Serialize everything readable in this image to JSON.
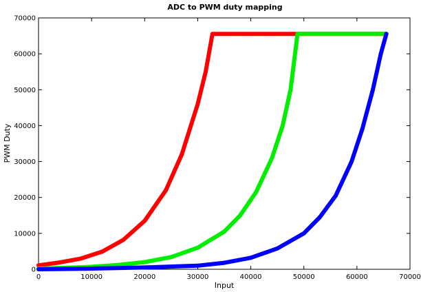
{
  "chart_data": {
    "type": "line",
    "title": "ADC to PWM duty mapping",
    "xlabel": "Input",
    "ylabel": "PWM Duty",
    "xlim": [
      0,
      70000
    ],
    "ylim": [
      0,
      70000
    ],
    "x_ticks": [
      "0",
      "10000",
      "20000",
      "30000",
      "40000",
      "50000",
      "60000",
      "70000"
    ],
    "y_ticks": [
      "0",
      "10000",
      "20000",
      "30000",
      "40000",
      "50000",
      "60000",
      "70000"
    ],
    "grid": false,
    "legend": "none",
    "series": [
      {
        "color": "#ff0000",
        "x": [
          0,
          4000,
          8000,
          12000,
          16000,
          20000,
          24000,
          27000,
          30000,
          31500,
          32768,
          36000,
          40000,
          44000,
          48000,
          52000,
          56000,
          60000,
          64000,
          65535
        ],
        "y": [
          1100,
          1900,
          3000,
          4900,
          8200,
          13500,
          22000,
          32000,
          46000,
          55000,
          65535,
          65535,
          65535,
          65535,
          65535,
          65535,
          65535,
          65535,
          65535,
          65535
        ]
      },
      {
        "color": "#00ee00",
        "x": [
          0,
          5000,
          10000,
          15000,
          20000,
          25000,
          30000,
          35000,
          38000,
          41000,
          44000,
          46000,
          47500,
          48800,
          52000,
          56000,
          60000,
          64000,
          65535
        ],
        "y": [
          200,
          400,
          700,
          1200,
          2000,
          3400,
          6000,
          10500,
          15000,
          21500,
          31000,
          40000,
          50000,
          65535,
          65535,
          65535,
          65535,
          65535,
          65535
        ]
      },
      {
        "color": "#0000ff",
        "x": [
          0,
          10000,
          20000,
          30000,
          35000,
          40000,
          45000,
          50000,
          53000,
          56000,
          59000,
          61000,
          63000,
          64500,
          65535
        ],
        "y": [
          0,
          200,
          500,
          1000,
          1800,
          3200,
          5800,
          10000,
          14500,
          20500,
          30000,
          39000,
          50000,
          60000,
          65535
        ]
      }
    ]
  }
}
